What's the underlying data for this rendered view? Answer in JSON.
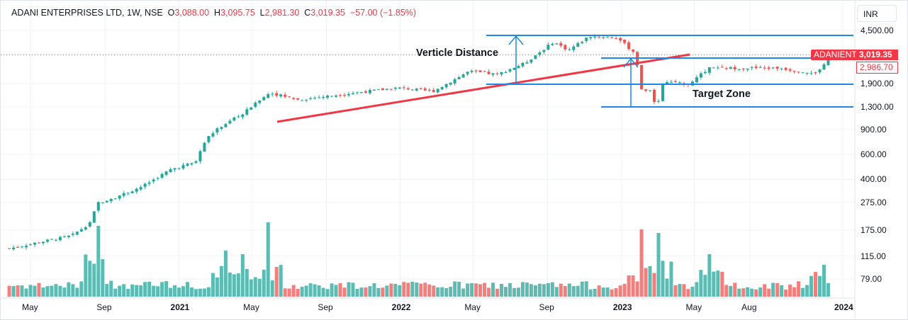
{
  "header": {
    "symbol": "ADANI ENTERPRISES LTD, 1W, NSE",
    "open_label": "O",
    "open": "3,088.00",
    "high_label": "H",
    "high": "3,095.75",
    "low_label": "L",
    "low": "2,981.30",
    "close_label": "C",
    "close": "3,019.35",
    "change": "−57.00 (−1.85%)"
  },
  "currency": "INR",
  "price_tags": {
    "ticker": "ADANIENT",
    "last": "3,019.35",
    "prev": "2,986.70"
  },
  "annotations": {
    "vertical": "Verticle Distance",
    "target": "Target Zone"
  },
  "colors": {
    "up": "#26a69a",
    "down": "#ef5350",
    "lines": "#1e88e5",
    "trend": "#f23645"
  },
  "chart_data": {
    "type": "candlestick",
    "y_scale": "log",
    "y_ticks": [
      "4,500.00",
      "1,900.00",
      "1,300.00",
      "900.00",
      "600.00",
      "400.00",
      "275.00",
      "175.00",
      "115.00",
      "79.00"
    ],
    "y_tick_values": [
      4500,
      1900,
      1300,
      900,
      600,
      400,
      275,
      175,
      115,
      79
    ],
    "x_ticks": [
      "May",
      "Sep",
      "2021",
      "May",
      "Sep",
      "2022",
      "May",
      "Sep",
      "2023",
      "May",
      "Aug",
      "2024"
    ],
    "x_tick_dates": [
      "2020-05-01",
      "2020-09-01",
      "2021-01-01",
      "2021-05-01",
      "2021-09-01",
      "2022-01-01",
      "2022-05-01",
      "2022-09-01",
      "2023-01-01",
      "2023-05-01",
      "2023-08-01",
      "2024-01-01"
    ],
    "close_path": [
      [
        "2020-03-27",
        130
      ],
      [
        "2020-05-22",
        146
      ],
      [
        "2020-07-08",
        160
      ],
      [
        "2020-08-06",
        195
      ],
      [
        "2020-08-21",
        275
      ],
      [
        "2020-09-16",
        297
      ],
      [
        "2020-11-02",
        358
      ],
      [
        "2020-12-19",
        472
      ],
      [
        "2021-01-28",
        528
      ],
      [
        "2021-02-15",
        775
      ],
      [
        "2021-03-10",
        942
      ],
      [
        "2021-04-15",
        1157
      ],
      [
        "2021-05-31",
        1636
      ],
      [
        "2021-07-17",
        1457
      ],
      [
        "2021-10-19",
        1636
      ],
      [
        "2021-12-28",
        1772
      ],
      [
        "2022-02-24",
        1670
      ],
      [
        "2022-04-24",
        2310
      ],
      [
        "2022-06-10",
        2200
      ],
      [
        "2022-07-26",
        2650
      ],
      [
        "2022-09-11",
        3740
      ],
      [
        "2022-10-05",
        3260
      ],
      [
        "2022-11-09",
        4100
      ],
      [
        "2022-12-25",
        4000
      ],
      [
        "2023-01-24",
        3075
      ],
      [
        "2023-02-04",
        1636
      ],
      [
        "2023-02-16",
        1720
      ],
      [
        "2023-02-28",
        1300
      ],
      [
        "2023-03-11",
        1943
      ],
      [
        "2023-04-21",
        1880
      ],
      [
        "2023-05-26",
        2440
      ],
      [
        "2023-07-24",
        2440
      ],
      [
        "2023-09-20",
        2440
      ],
      [
        "2023-11-17",
        2220
      ],
      [
        "2023-12-02",
        2590
      ],
      [
        "2023-12-10",
        3019.35
      ]
    ],
    "volume_spikes": [
      [
        "2020-08-21",
        1.0
      ],
      [
        "2021-03-17",
        0.65
      ],
      [
        "2021-04-15",
        0.6
      ],
      [
        "2021-05-31",
        1.05
      ],
      [
        "2023-02-04",
        0.95
      ],
      [
        "2023-02-28",
        0.9
      ],
      [
        "2023-05-26",
        0.6
      ],
      [
        "2023-12-02",
        0.45
      ]
    ],
    "horizontal_levels": [
      4150,
      2870,
      1880,
      1300
    ]
  }
}
